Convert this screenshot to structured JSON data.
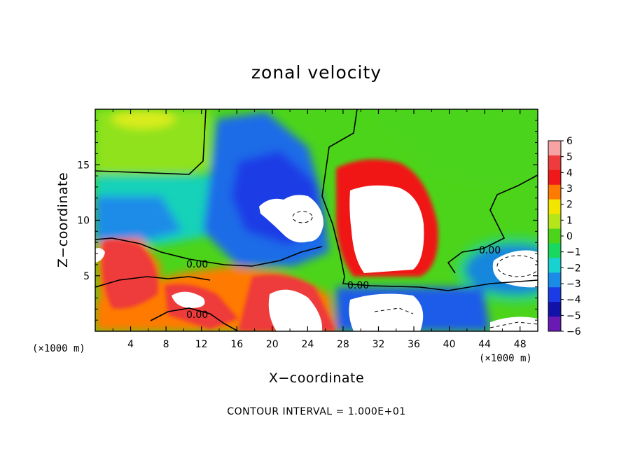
{
  "chart_data": {
    "type": "heatmap",
    "title": "zonal velocity",
    "xlabel": "X−coordinate",
    "ylabel": "Z−coordinate",
    "xlim": [
      0,
      50
    ],
    "ylim": [
      0,
      20
    ],
    "x_ticks": [
      4,
      8,
      12,
      16,
      20,
      24,
      28,
      32,
      36,
      40,
      44,
      48
    ],
    "x_tick_labels": [
      "4",
      "8",
      "12",
      "16",
      "20",
      "24",
      "28",
      "32",
      "36",
      "40",
      "44",
      "48"
    ],
    "y_ticks": [
      5,
      10,
      15
    ],
    "y_tick_labels": [
      "5",
      "10",
      "15"
    ],
    "x_unit_label": "(×1000 m)",
    "z_unit_label": "(×1000 m)",
    "colorbar": {
      "levels": [
        6,
        5,
        4,
        3,
        2,
        1,
        0,
        -1,
        -2,
        -3,
        -4,
        -5,
        -6
      ],
      "labels": [
        "6",
        "5",
        "4",
        "3",
        "2",
        "1",
        "0",
        "−1",
        "−2",
        "−3",
        "−4",
        "−5",
        "−6"
      ],
      "colors": [
        "#f7a3a3",
        "#ee3b3b",
        "#f01818",
        "#ff7a00",
        "#f2e600",
        "#b6e61a",
        "#4cd41a",
        "#18d860",
        "#18d2d2",
        "#1a8ce8",
        "#1a3ce6",
        "#1212a8",
        "#6a1ab4"
      ]
    },
    "contour_labels": [
      "0.00",
      "0.00",
      "0.00",
      "0.00"
    ],
    "contour_interval_note": "CONTOUR INTERVAL = 1.000E+01"
  }
}
